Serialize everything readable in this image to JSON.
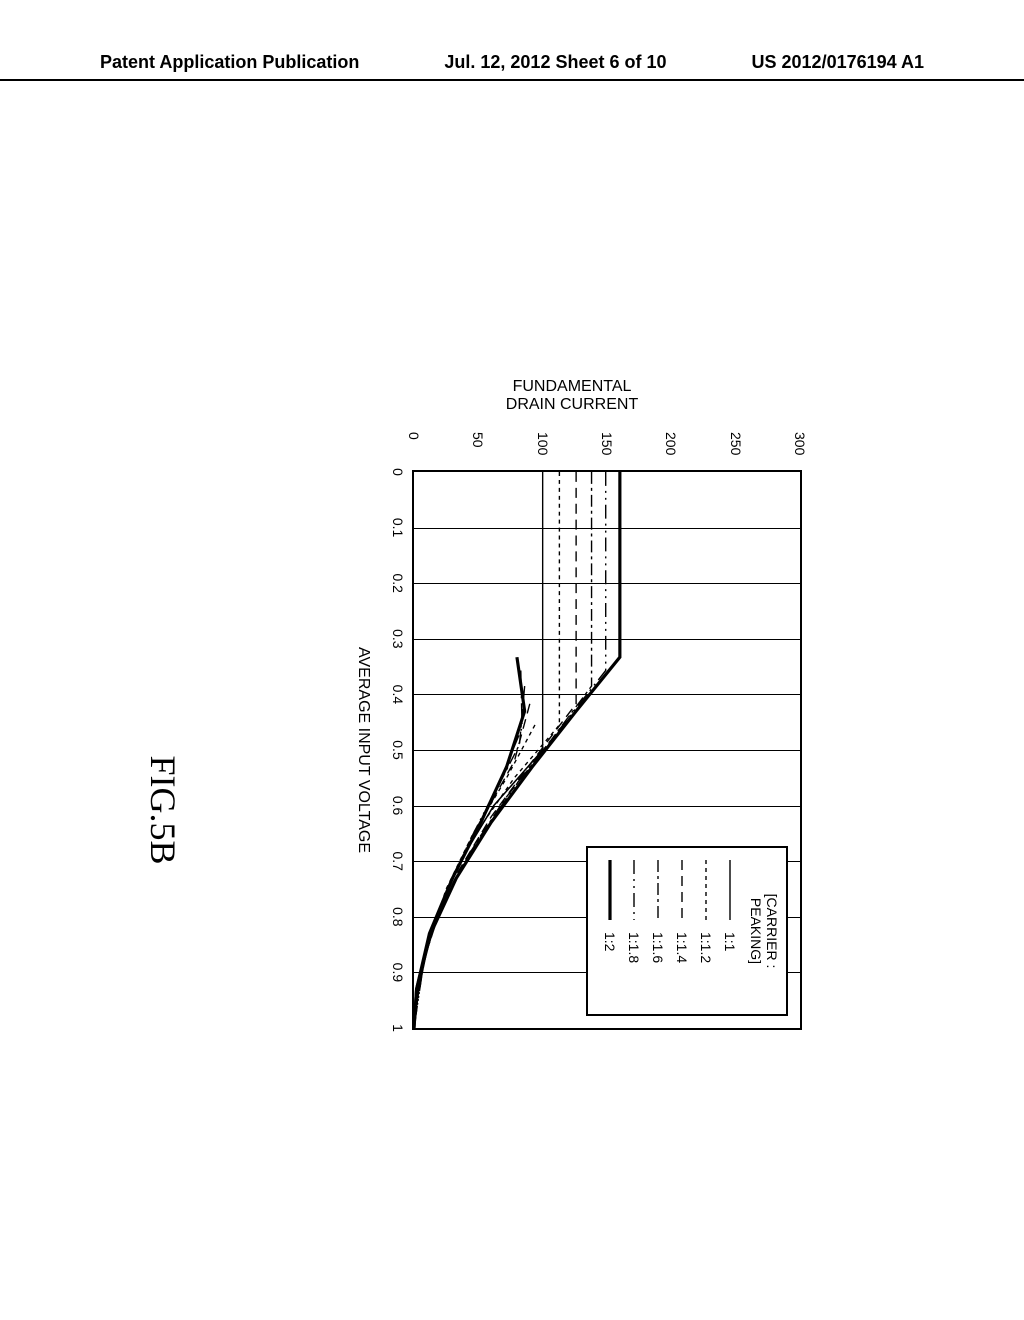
{
  "header": {
    "left": "Patent Application Publication",
    "center": "Jul. 12, 2012  Sheet 6 of 10",
    "right": "US 2012/0176194 A1"
  },
  "figure_label": "FIG.5B",
  "chart": {
    "type": "line",
    "xlabel": "AVERAGE INPUT VOLTAGE",
    "ylabel_line1": "FUNDAMENTAL",
    "ylabel_line2": "DRAIN CURRENT",
    "xlim": [
      0,
      1
    ],
    "ylim": [
      0,
      300
    ],
    "xtick_step": 0.1,
    "ytick_step": 50,
    "xticks": [
      "0",
      "0.1",
      "0.2",
      "0.3",
      "0.4",
      "0.5",
      "0.6",
      "0.7",
      "0.8",
      "0.9",
      "1"
    ],
    "yticks": [
      "0",
      "50",
      "100",
      "150",
      "200",
      "250",
      "300"
    ],
    "background_color": "#ffffff",
    "grid_color": "#000000",
    "axis_color": "#000000",
    "legend_title": "[CARRIER : PEAKING]",
    "series": [
      {
        "label": "1:1",
        "dash": "",
        "width": 1.4,
        "carrier": [
          [
            0,
            100
          ],
          [
            0.5,
            100
          ],
          [
            0.6,
            62
          ],
          [
            0.7,
            36
          ],
          [
            0.8,
            18
          ],
          [
            0.9,
            5
          ],
          [
            1,
            0
          ]
        ],
        "peaking": [
          [
            0.5,
            100
          ],
          [
            0.6,
            62
          ],
          [
            0.7,
            36
          ],
          [
            0.8,
            18
          ],
          [
            0.9,
            5
          ],
          [
            1,
            0
          ]
        ]
      },
      {
        "label": "1:1.2",
        "dash": "4 4",
        "width": 1.4,
        "carrier": [
          [
            0,
            113
          ],
          [
            0.455,
            113
          ],
          [
            0.55,
            78
          ],
          [
            0.65,
            48
          ],
          [
            0.75,
            26
          ],
          [
            0.85,
            11
          ],
          [
            0.95,
            2
          ],
          [
            1,
            0
          ]
        ],
        "peaking": [
          [
            0.455,
            94
          ],
          [
            0.55,
            72
          ],
          [
            0.65,
            46
          ],
          [
            0.75,
            25
          ],
          [
            0.85,
            11
          ],
          [
            0.95,
            2
          ],
          [
            1,
            0
          ]
        ]
      },
      {
        "label": "1:1.4",
        "dash": "10 6",
        "width": 1.4,
        "carrier": [
          [
            0,
            126
          ],
          [
            0.417,
            126
          ],
          [
            0.52,
            92
          ],
          [
            0.62,
            60
          ],
          [
            0.72,
            34
          ],
          [
            0.82,
            15
          ],
          [
            0.92,
            3
          ],
          [
            1,
            0
          ]
        ],
        "peaking": [
          [
            0.417,
            90
          ],
          [
            0.52,
            78
          ],
          [
            0.62,
            54
          ],
          [
            0.72,
            32
          ],
          [
            0.82,
            15
          ],
          [
            0.92,
            3
          ],
          [
            1,
            0
          ]
        ]
      },
      {
        "label": "1:1.6",
        "dash": "12 4 3 4",
        "width": 1.4,
        "carrier": [
          [
            0,
            138
          ],
          [
            0.385,
            138
          ],
          [
            0.49,
            104
          ],
          [
            0.59,
            70
          ],
          [
            0.69,
            42
          ],
          [
            0.79,
            20
          ],
          [
            0.89,
            6
          ],
          [
            1,
            0
          ]
        ],
        "peaking": [
          [
            0.385,
            86
          ],
          [
            0.49,
            82
          ],
          [
            0.59,
            60
          ],
          [
            0.69,
            38
          ],
          [
            0.79,
            19
          ],
          [
            0.89,
            6
          ],
          [
            1,
            0
          ]
        ]
      },
      {
        "label": "1:1.8",
        "dash": "14 5 2 5 2 5",
        "width": 1.4,
        "carrier": [
          [
            0,
            149
          ],
          [
            0.357,
            149
          ],
          [
            0.46,
            114
          ],
          [
            0.56,
            80
          ],
          [
            0.66,
            50
          ],
          [
            0.76,
            26
          ],
          [
            0.86,
            9
          ],
          [
            1,
            0
          ]
        ],
        "peaking": [
          [
            0.357,
            83
          ],
          [
            0.46,
            84
          ],
          [
            0.56,
            66
          ],
          [
            0.66,
            44
          ],
          [
            0.76,
            24
          ],
          [
            0.86,
            9
          ],
          [
            1,
            0
          ]
        ]
      },
      {
        "label": "1:2",
        "dash": "",
        "width": 3.2,
        "carrier": [
          [
            0,
            160
          ],
          [
            0.333,
            160
          ],
          [
            0.43,
            126
          ],
          [
            0.53,
            92
          ],
          [
            0.63,
            60
          ],
          [
            0.73,
            33
          ],
          [
            0.83,
            13
          ],
          [
            0.93,
            2
          ],
          [
            1,
            0
          ]
        ],
        "peaking": [
          [
            0.333,
            80
          ],
          [
            0.43,
            86
          ],
          [
            0.53,
            72
          ],
          [
            0.63,
            52
          ],
          [
            0.73,
            30
          ],
          [
            0.83,
            12
          ],
          [
            0.93,
            2
          ],
          [
            1,
            0
          ]
        ]
      }
    ]
  }
}
